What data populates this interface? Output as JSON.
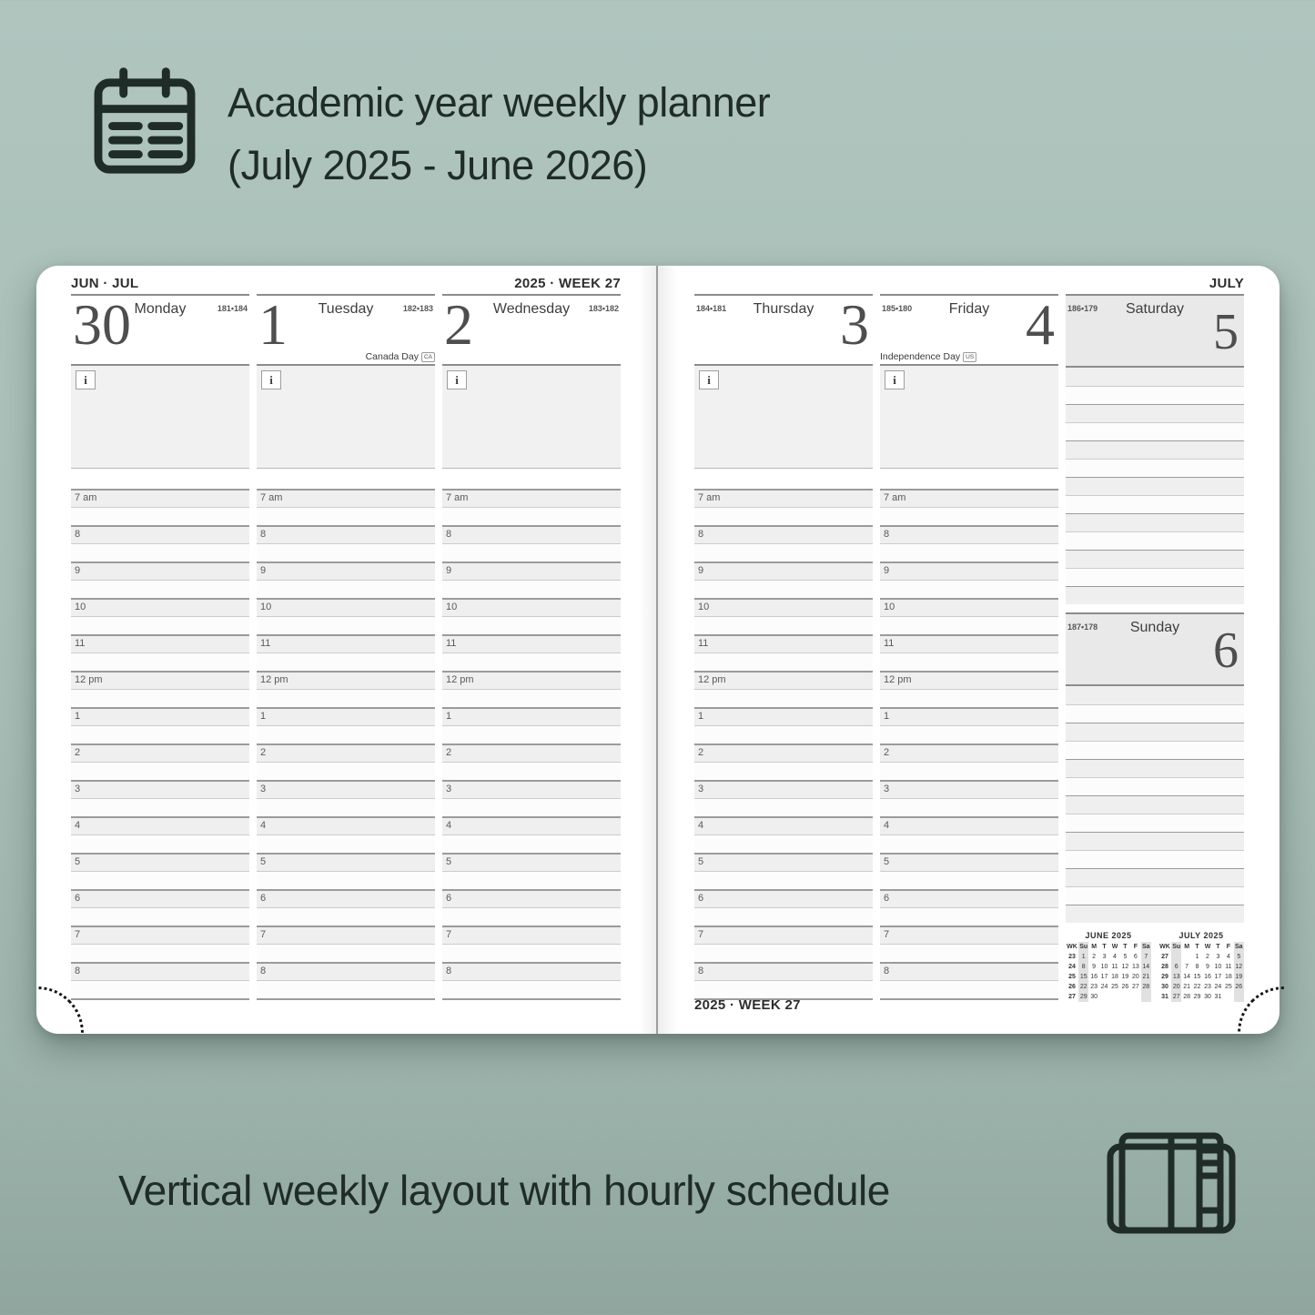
{
  "header": {
    "icon": "calendar-notepad-icon",
    "title_line1": "Academic year weekly planner",
    "title_line2": "(July 2025 - June 2026)"
  },
  "caption": {
    "icon": "open-planner-icon",
    "text": "Vertical weekly layout with hourly schedule"
  },
  "colors": {
    "background_sage": "#a8bfb7",
    "ink_dark": "#202c27",
    "page_white": "#ffffff",
    "weekend_header_gray": "#e9e9e9",
    "hour_line_gray": "#9b9b9b",
    "half_hour_line_gray": "#cccccc",
    "notes_gray": "#f1f1f1"
  },
  "planner": {
    "info_icon": "i",
    "hours": [
      "7 am",
      "8",
      "9",
      "10",
      "11",
      "12 pm",
      "1",
      "2",
      "3",
      "4",
      "5",
      "6",
      "7",
      "8"
    ],
    "left_page": {
      "month_label": "JUN · JUL",
      "week_label": "2025 · WEEK 27",
      "days": [
        {
          "number": "30",
          "name": "Monday",
          "ordinal": "181•184",
          "holiday": "",
          "holiday_badge": ""
        },
        {
          "number": "1",
          "name": "Tuesday",
          "ordinal": "182•183",
          "holiday": "Canada Day",
          "holiday_badge": "CA"
        },
        {
          "number": "2",
          "name": "Wednesday",
          "ordinal": "183•182",
          "holiday": "",
          "holiday_badge": ""
        }
      ]
    },
    "right_page": {
      "month_label": "JULY",
      "week_footer": "2025 · WEEK 27",
      "days": [
        {
          "number": "3",
          "name": "Thursday",
          "ordinal": "184•181",
          "holiday": "",
          "holiday_badge": ""
        },
        {
          "number": "4",
          "name": "Friday",
          "ordinal": "185•180",
          "holiday": "Independence Day",
          "holiday_badge": "US"
        }
      ],
      "weekend_days": [
        {
          "number": "5",
          "name": "Saturday",
          "ordinal": "186•179"
        },
        {
          "number": "6",
          "name": "Sunday",
          "ordinal": "187•178"
        }
      ]
    },
    "mini_calendars": [
      {
        "title": "JUNE 2025",
        "columns": [
          "WK",
          "Su",
          "M",
          "T",
          "W",
          "T",
          "F",
          "Sa"
        ],
        "rows": [
          [
            "23",
            "1",
            "2",
            "3",
            "4",
            "5",
            "6",
            "7"
          ],
          [
            "24",
            "8",
            "9",
            "10",
            "11",
            "12",
            "13",
            "14"
          ],
          [
            "25",
            "15",
            "16",
            "17",
            "18",
            "19",
            "20",
            "21"
          ],
          [
            "26",
            "22",
            "23",
            "24",
            "25",
            "26",
            "27",
            "28"
          ],
          [
            "27",
            "29",
            "30",
            "",
            "",
            "",
            "",
            ""
          ]
        ]
      },
      {
        "title": "JULY 2025",
        "columns": [
          "WK",
          "Su",
          "M",
          "T",
          "W",
          "T",
          "F",
          "Sa"
        ],
        "rows": [
          [
            "27",
            "",
            "",
            "1",
            "2",
            "3",
            "4",
            "5"
          ],
          [
            "28",
            "6",
            "7",
            "8",
            "9",
            "10",
            "11",
            "12"
          ],
          [
            "29",
            "13",
            "14",
            "15",
            "16",
            "17",
            "18",
            "19"
          ],
          [
            "30",
            "20",
            "21",
            "22",
            "23",
            "24",
            "25",
            "26"
          ],
          [
            "31",
            "27",
            "28",
            "29",
            "30",
            "31",
            "",
            ""
          ]
        ]
      }
    ]
  }
}
